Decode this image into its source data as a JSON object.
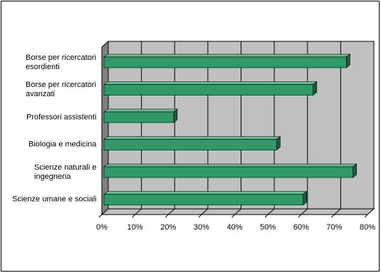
{
  "chart_data": {
    "type": "bar",
    "orientation": "horizontal",
    "three_d": true,
    "categories": [
      "Borse per ricercatori esordienti",
      "Borse per ricercatori avanzati",
      "Professori assistenti",
      "Biologia e medicina",
      "Scienze naturali e ingegneria",
      "Scienze umane e sociali"
    ],
    "values": [
      73,
      63,
      21,
      52,
      75,
      60
    ],
    "xlim": [
      0,
      80
    ],
    "xticks": [
      "0%",
      "10%",
      "20%",
      "30%",
      "40%",
      "50%",
      "60%",
      "70%",
      "80%"
    ],
    "grid": true,
    "colors": {
      "bar": "#2f9a68",
      "bar_top": "#5cbf8f",
      "bar_end": "#1f5c3f",
      "wall": "#c0c0c0",
      "side_wall": "#808080",
      "floor": "#c0c0c0"
    }
  }
}
